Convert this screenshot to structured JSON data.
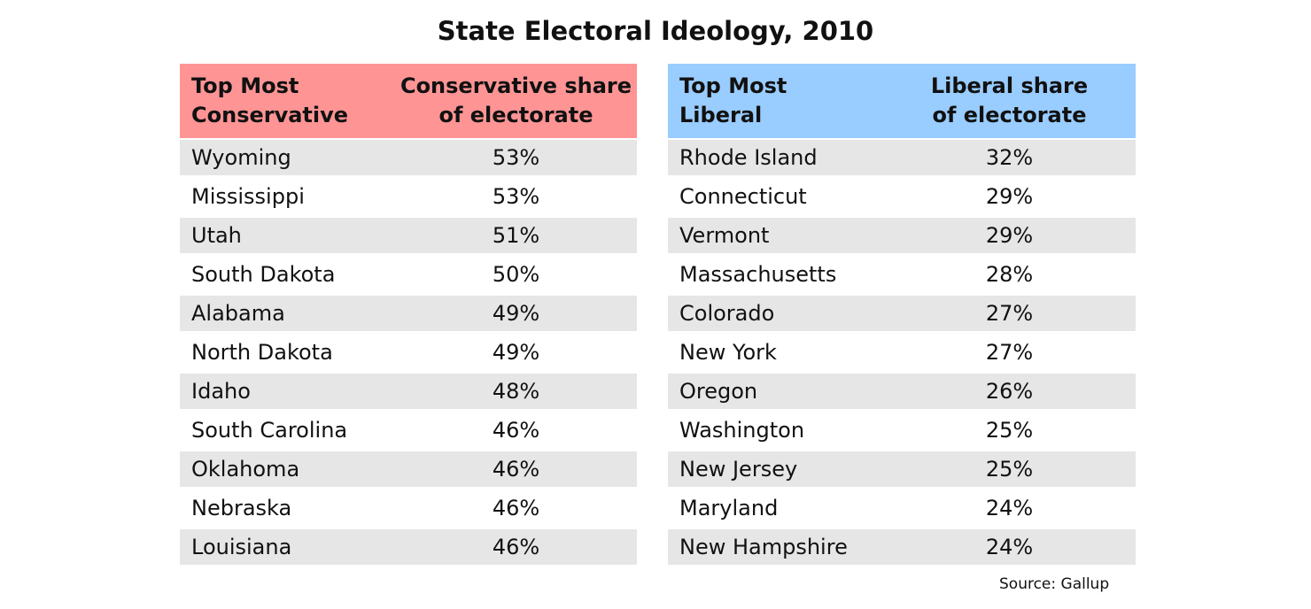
{
  "chart_data": {
    "type": "table",
    "title": "State Electoral Ideology, 2010",
    "source": "Source: Gallup",
    "tables": [
      {
        "name": "conservative",
        "header_color": "#ff9494",
        "headers": [
          "Top Most Conservative",
          "Conservative share of electorate"
        ],
        "rows": [
          [
            "Wyoming",
            "53%"
          ],
          [
            "Mississippi",
            "53%"
          ],
          [
            "Utah",
            "51%"
          ],
          [
            "South Dakota",
            "50%"
          ],
          [
            "Alabama",
            "49%"
          ],
          [
            "North Dakota",
            "49%"
          ],
          [
            "Idaho",
            "48%"
          ],
          [
            "South Carolina",
            "46%"
          ],
          [
            "Oklahoma",
            "46%"
          ],
          [
            "Nebraska",
            "46%"
          ],
          [
            "Louisiana",
            "46%"
          ]
        ]
      },
      {
        "name": "liberal",
        "header_color": "#99ccff",
        "headers": [
          "Top Most Liberal",
          "Liberal share of electorate"
        ],
        "rows": [
          [
            "Rhode Island",
            "32%"
          ],
          [
            "Connecticut",
            "29%"
          ],
          [
            "Vermont",
            "29%"
          ],
          [
            "Massachusetts",
            "28%"
          ],
          [
            "Colorado",
            "27%"
          ],
          [
            "New York",
            "27%"
          ],
          [
            "Oregon",
            "26%"
          ],
          [
            "Washington",
            "25%"
          ],
          [
            "New Jersey",
            "25%"
          ],
          [
            "Maryland",
            "24%"
          ],
          [
            "New Hampshire",
            "24%"
          ]
        ]
      }
    ]
  }
}
